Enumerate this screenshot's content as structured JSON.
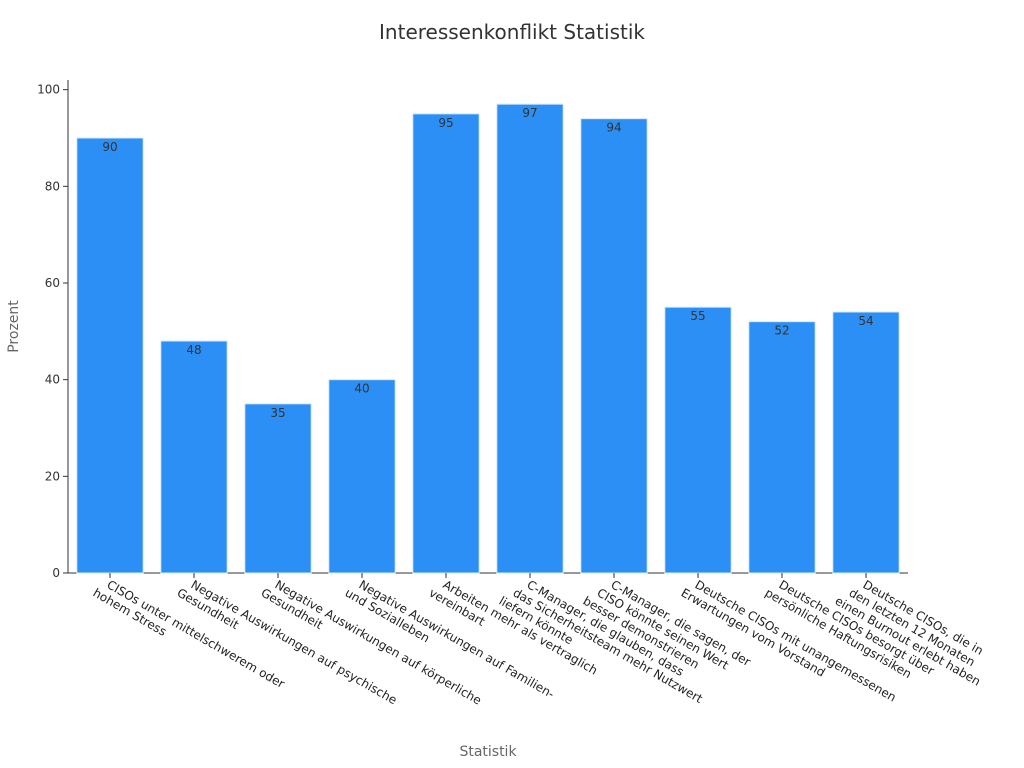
{
  "chart_data": {
    "type": "bar",
    "title": "Interessenkonflikt Statistik",
    "xlabel": "Statistik",
    "ylabel": "Prozent",
    "ylim": [
      0,
      102
    ],
    "yticks": [
      0,
      20,
      40,
      60,
      80,
      100
    ],
    "categories": [
      [
        "CISOs unter mittelschwerem oder",
        "hohem Stress"
      ],
      [
        "Negative Auswirkungen auf psychische",
        "Gesundheit"
      ],
      [
        "Negative Auswirkungen auf körperliche",
        "Gesundheit"
      ],
      [
        "Negative Auswirkungen auf Familien-",
        "und Sozialleben"
      ],
      [
        "Arbeiten mehr als vertraglich",
        "vereinbart"
      ],
      [
        "C-Manager, die glauben, dass",
        "das Sicherheitsteam mehr Nutzwert",
        "liefern könnte"
      ],
      [
        "C-Manager, die sagen, der",
        "CISO könnte seinen Wert",
        "besser demonstrieren"
      ],
      [
        "Deutsche CISOs mit unangemessenen",
        "Erwartungen vom Vorstand"
      ],
      [
        "Deutsche CISOs besorgt über",
        "persönliche Haftungsrisiken"
      ],
      [
        "Deutsche CISOs, die in",
        "den letzten 12 Monaten",
        "einen Burnout erlebt haben"
      ]
    ],
    "values": [
      90,
      48,
      35,
      40,
      95,
      97,
      94,
      55,
      52,
      54
    ],
    "bar_color": "#2b8ff5",
    "grid": false,
    "legend": "none"
  }
}
